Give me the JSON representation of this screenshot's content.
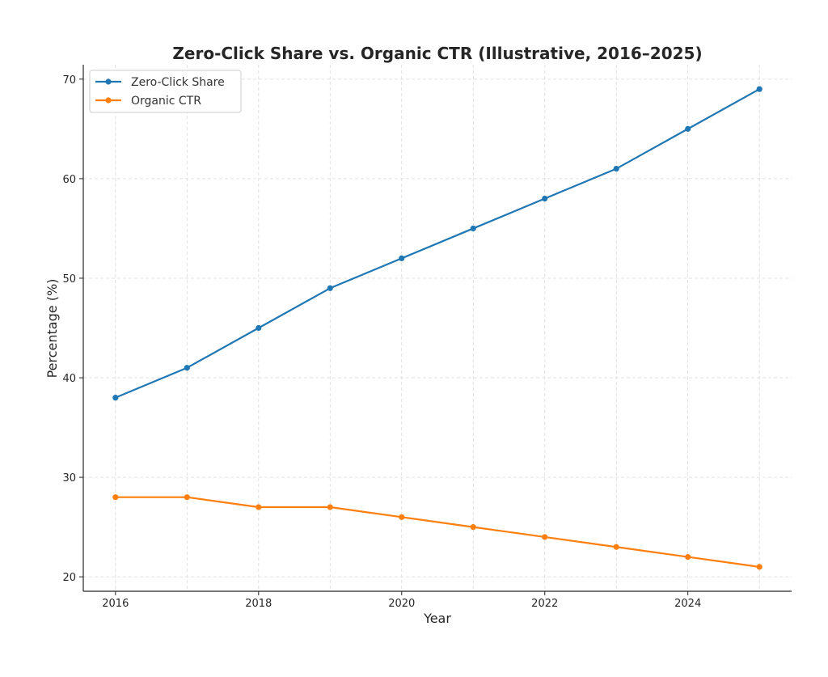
{
  "chart_data": {
    "type": "line",
    "title": "Zero-Click Share vs. Organic CTR (Illustrative, 2016–2025)",
    "xlabel": "Year",
    "ylabel": "Percentage (%)",
    "x": [
      2016,
      2017,
      2018,
      2019,
      2020,
      2021,
      2022,
      2023,
      2024,
      2025
    ],
    "xlim": [
      2015.55,
      2025.45
    ],
    "ylim": [
      18.55,
      71.45
    ],
    "x_ticks": [
      2016,
      2018,
      2020,
      2022,
      2024
    ],
    "y_ticks": [
      20,
      30,
      40,
      50,
      60,
      70
    ],
    "grid": true,
    "legend_position": "top-left",
    "series": [
      {
        "name": "Zero-Click Share",
        "color": "#1f77b4",
        "values": [
          38,
          41,
          45,
          49,
          52,
          55,
          58,
          61,
          65,
          69
        ]
      },
      {
        "name": "Organic CTR",
        "color": "#ff7f0e",
        "values": [
          28,
          28,
          27,
          27,
          26,
          25,
          24,
          23,
          22,
          21
        ]
      }
    ]
  }
}
